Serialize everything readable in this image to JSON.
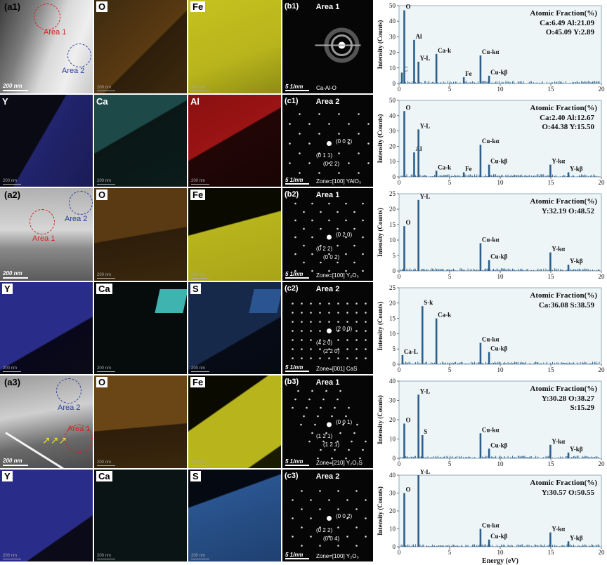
{
  "column_a": {
    "row1": {
      "panel_label": "(a1)",
      "maps": [
        "O",
        "Fe"
      ],
      "scale_main": "200 nm",
      "scale_small": "200 nm",
      "area1": "Area 1",
      "area2": "Area 2"
    },
    "row2": {
      "maps": [
        "Y",
        "Ca",
        "Al"
      ],
      "scale_small": "200 nm"
    },
    "row3": {
      "panel_label": "(a2)",
      "maps": [
        "O",
        "Fe"
      ],
      "scale_main": "200 nm",
      "scale_small": "200 nm",
      "area1": "Area 1",
      "area2": "Area 2"
    },
    "row4": {
      "maps": [
        "Y",
        "Ca",
        "S"
      ],
      "scale_small": "200 nm"
    },
    "row5": {
      "panel_label": "(a3)",
      "maps": [
        "O",
        "Fe"
      ],
      "scale_main": "200 nm",
      "scale_small": "200 nm",
      "area1": "Area 1",
      "area2": "Area 2"
    },
    "row6": {
      "maps": [
        "Y",
        "Ca",
        "S"
      ],
      "scale_small": "200 nm"
    }
  },
  "saed": [
    {
      "panel": "(b1)",
      "title": "Area 1",
      "scale": "5 1/nm",
      "zone": "Ca-Al-O",
      "spots": []
    },
    {
      "panel": "(c1)",
      "title": "Area 2",
      "scale": "5 1/nm",
      "zone": "Zone=[100] YAlO₃",
      "spots": [
        "(0 0 2)",
        "(0 1 1)",
        "(0 2 2)"
      ]
    },
    {
      "panel": "(b2)",
      "title": "Area 1",
      "scale": "5 1/nm",
      "zone": "Zone=[100] Y₂O₃",
      "spots": [
        "(0 2 0)",
        "(0 2 2)",
        "(0 0 2)"
      ]
    },
    {
      "panel": "(c2)",
      "title": "Area 2",
      "scale": "5 1/nm",
      "zone": "Zone=[001] CaS",
      "spots": [
        "(2 0 0)",
        "(4 2 0)",
        "(2 2 0)"
      ]
    },
    {
      "panel": "(b3)",
      "title": "Area 1",
      "scale": "5 1/nm",
      "zone": "Zone=[210] Y₂O₂S",
      "spots": [
        "(0 0 1)",
        "(1 2 1)",
        "(1 2 1)"
      ]
    },
    {
      "panel": "(c3)",
      "title": "Area 2",
      "scale": "5 1/nm",
      "zone": "Zone=[100] Y₂O₃",
      "spots": [
        "(0 0 2)",
        "(0 2 2)",
        "(0 0 4)"
      ]
    }
  ],
  "colors": {
    "accent": "#2e5f8a",
    "area1": "#d32020",
    "area2": "#2a3f9a",
    "chart_bg": "#eef5f7",
    "O": "#5a3a12",
    "Fe": "#b8b41c",
    "Y": "#2a2c8a",
    "Ca": "#3fb3b0",
    "Al": "#b01818",
    "S": "#2a5590"
  },
  "chart_data": [
    {
      "type": "line",
      "panel": "b1",
      "ylabel": "Intensity (Counts)",
      "xlim": [
        0,
        20
      ],
      "ylim": [
        0,
        50
      ],
      "yticks": [
        0,
        10,
        20,
        30,
        40,
        50
      ],
      "fraction_title": "Atomic Fraction(%)",
      "fraction_lines": [
        "Ca:6.49   Al:21.09",
        "O:45.09   Y:2.89"
      ],
      "peaks": [
        {
          "x": 0.28,
          "y": 7,
          "label": "C"
        },
        {
          "x": 0.52,
          "y": 47,
          "label": "O"
        },
        {
          "x": 1.49,
          "y": 28,
          "label": "Al"
        },
        {
          "x": 1.92,
          "y": 14,
          "label": "Y-L"
        },
        {
          "x": 3.69,
          "y": 19,
          "label": "Ca-k"
        },
        {
          "x": 6.4,
          "y": 4,
          "label": "Fe"
        },
        {
          "x": 8.05,
          "y": 18,
          "label": "Cu-kα"
        },
        {
          "x": 8.9,
          "y": 5,
          "label": "Cu-kβ"
        }
      ]
    },
    {
      "type": "line",
      "panel": "c1",
      "ylabel": "Intensity (Counts)",
      "xlim": [
        0,
        20
      ],
      "ylim": [
        0,
        50
      ],
      "yticks": [
        0,
        10,
        20,
        30,
        40,
        50
      ],
      "fraction_title": "Atomic Fraction(%)",
      "fraction_lines": [
        "Ca:2.40   Al:12.67",
        "O:44.38   Y:15.50"
      ],
      "peaks": [
        {
          "x": 0.52,
          "y": 43,
          "label": "O"
        },
        {
          "x": 1.49,
          "y": 16,
          "label": "Al"
        },
        {
          "x": 1.92,
          "y": 31,
          "label": "Y-L"
        },
        {
          "x": 3.69,
          "y": 4,
          "label": "Ca-k"
        },
        {
          "x": 6.4,
          "y": 3,
          "label": "Fe"
        },
        {
          "x": 8.05,
          "y": 21,
          "label": "Cu-kα"
        },
        {
          "x": 8.9,
          "y": 8,
          "label": "Cu-kβ"
        },
        {
          "x": 14.96,
          "y": 8,
          "label": "Y-kα"
        },
        {
          "x": 16.74,
          "y": 3,
          "label": "Y-kβ"
        }
      ]
    },
    {
      "type": "line",
      "panel": "b2",
      "ylabel": "Intensity (Counts)",
      "xlim": [
        0,
        20
      ],
      "ylim": [
        0,
        25
      ],
      "yticks": [
        0,
        5,
        10,
        15,
        20,
        25
      ],
      "fraction_title": "Atomic Fraction(%)",
      "fraction_lines": [
        "Y:32.19   O:48.52"
      ],
      "peaks": [
        {
          "x": 0.52,
          "y": 14.5,
          "label": "O"
        },
        {
          "x": 1.92,
          "y": 23,
          "label": "Y-L"
        },
        {
          "x": 8.05,
          "y": 9,
          "label": "Cu-kα"
        },
        {
          "x": 8.9,
          "y": 3.5,
          "label": "Cu-kβ"
        },
        {
          "x": 14.96,
          "y": 6,
          "label": "Y-kα"
        },
        {
          "x": 16.74,
          "y": 2,
          "label": "Y-kβ"
        }
      ]
    },
    {
      "type": "line",
      "panel": "c2",
      "ylabel": "Intensity (Counts)",
      "xlim": [
        0,
        20
      ],
      "ylim": [
        0,
        25
      ],
      "yticks": [
        0,
        5,
        10,
        15,
        20,
        25
      ],
      "fraction_title": "Atomic Fraction(%)",
      "fraction_lines": [
        "Ca:36.08   S:38.59"
      ],
      "peaks": [
        {
          "x": 0.34,
          "y": 3,
          "label": "Ca-L"
        },
        {
          "x": 2.31,
          "y": 19,
          "label": "S-k"
        },
        {
          "x": 3.69,
          "y": 15,
          "label": "Ca-k"
        },
        {
          "x": 8.05,
          "y": 7,
          "label": "Cu-kα"
        },
        {
          "x": 8.9,
          "y": 4,
          "label": "Cu-kβ"
        }
      ]
    },
    {
      "type": "line",
      "panel": "b3",
      "ylabel": "Intensity (Counts)",
      "xlim": [
        0,
        20
      ],
      "ylim": [
        0,
        40
      ],
      "yticks": [
        0,
        10,
        20,
        30,
        40
      ],
      "fraction_title": "Atomic Fraction(%)",
      "fraction_lines": [
        "Y:30.28   O:38.27",
        "S:15.29"
      ],
      "peaks": [
        {
          "x": 0.52,
          "y": 18,
          "label": "O"
        },
        {
          "x": 1.92,
          "y": 33,
          "label": "Y-L"
        },
        {
          "x": 2.31,
          "y": 12,
          "label": "S"
        },
        {
          "x": 8.05,
          "y": 13,
          "label": "Cu-kα"
        },
        {
          "x": 8.9,
          "y": 5,
          "label": "Cu-kβ"
        },
        {
          "x": 14.96,
          "y": 7,
          "label": "Y-kα"
        },
        {
          "x": 16.74,
          "y": 3,
          "label": "Y-kβ"
        }
      ]
    },
    {
      "type": "line",
      "panel": "c3",
      "ylabel": "Intensity (Counts)",
      "xlabel": "Energy (eV)",
      "xlim": [
        0,
        20
      ],
      "ylim": [
        0,
        40
      ],
      "yticks": [
        0,
        10,
        20,
        30,
        40
      ],
      "xticks": [
        0,
        5,
        10,
        15,
        20
      ],
      "fraction_title": "Atomic Fraction(%)",
      "fraction_lines": [
        "Y:30.57   O:50.55"
      ],
      "peaks": [
        {
          "x": 0.52,
          "y": 30,
          "label": "O"
        },
        {
          "x": 1.92,
          "y": 40,
          "label": "Y-L"
        },
        {
          "x": 8.05,
          "y": 10,
          "label": "Cu-kα"
        },
        {
          "x": 8.9,
          "y": 4,
          "label": "Cu-kβ"
        },
        {
          "x": 14.96,
          "y": 8,
          "label": "Y-kα"
        },
        {
          "x": 16.74,
          "y": 3,
          "label": "Y-kβ"
        }
      ]
    }
  ]
}
